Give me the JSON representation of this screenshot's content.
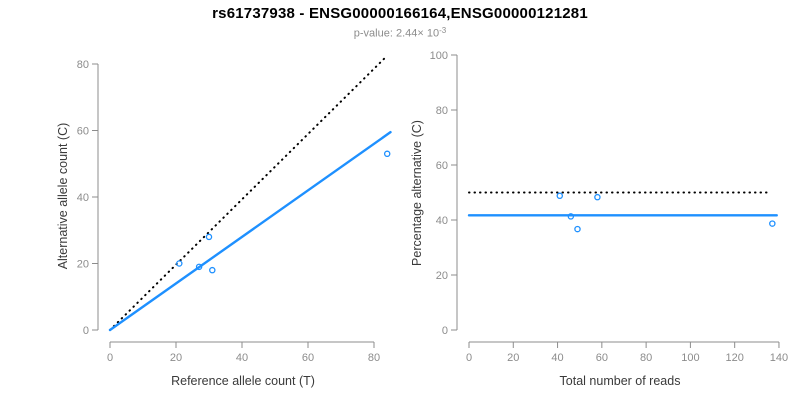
{
  "header": {
    "title": "rs61737938 - ENSG00000166164,ENSG00000121281",
    "subtitle": "p-value: 2.44× 10",
    "subtitle_exponent": "-3"
  },
  "colors": {
    "accent_blue": "#1E90FF",
    "dotted_black": "#000000",
    "axis_line": "#8c8c8c",
    "tick_text": "#8c8c8c",
    "axis_title_text": "#3a3a3a",
    "title_text": "#000000",
    "subtitle_text": "#8c8c8c"
  },
  "chart_data": [
    {
      "type": "scatter",
      "panel": "left",
      "xlabel": "Reference allele count (T)",
      "ylabel": "Alternative allele count (C)",
      "xlim": [
        0,
        84
      ],
      "ylim": [
        0,
        82
      ],
      "xticks": [
        0,
        20,
        40,
        60,
        80
      ],
      "yticks": [
        0,
        20,
        40,
        60,
        80
      ],
      "grid": false,
      "legend": "none",
      "points": {
        "x": [
          21,
          27,
          30,
          31,
          84
        ],
        "y": [
          20,
          19,
          28,
          18,
          53
        ]
      },
      "lines": [
        {
          "name": "identity-line",
          "style": "dotted",
          "color": "#000000",
          "x1": 0,
          "y1": 0,
          "x2": 84,
          "y2": 82.5
        },
        {
          "name": "fitted-ratio-line",
          "style": "solid",
          "color": "#1E90FF",
          "x1": 0,
          "y1": 0,
          "x2": 85,
          "y2": 59.5
        }
      ]
    },
    {
      "type": "scatter",
      "panel": "right",
      "xlabel": "Total number of reads",
      "ylabel": "Percentage alternative (C)",
      "xlim": [
        0,
        142
      ],
      "ylim": [
        0,
        100
      ],
      "xticks": [
        0,
        20,
        40,
        60,
        80,
        100,
        120,
        140
      ],
      "yticks": [
        0,
        20,
        40,
        60,
        80,
        100
      ],
      "grid": false,
      "legend": "none",
      "points": {
        "x": [
          41,
          46,
          58,
          49,
          137
        ],
        "y": [
          48.8,
          41.3,
          48.3,
          36.7,
          38.7
        ]
      },
      "lines": [
        {
          "name": "expected-50pct-line",
          "style": "dotted",
          "color": "#000000",
          "x1": 0,
          "y1": 50,
          "x2": 136,
          "y2": 50
        },
        {
          "name": "fitted-pct-line",
          "style": "solid",
          "color": "#1E90FF",
          "x1": 0,
          "y1": 41.7,
          "x2": 139,
          "y2": 41.7
        }
      ]
    }
  ]
}
